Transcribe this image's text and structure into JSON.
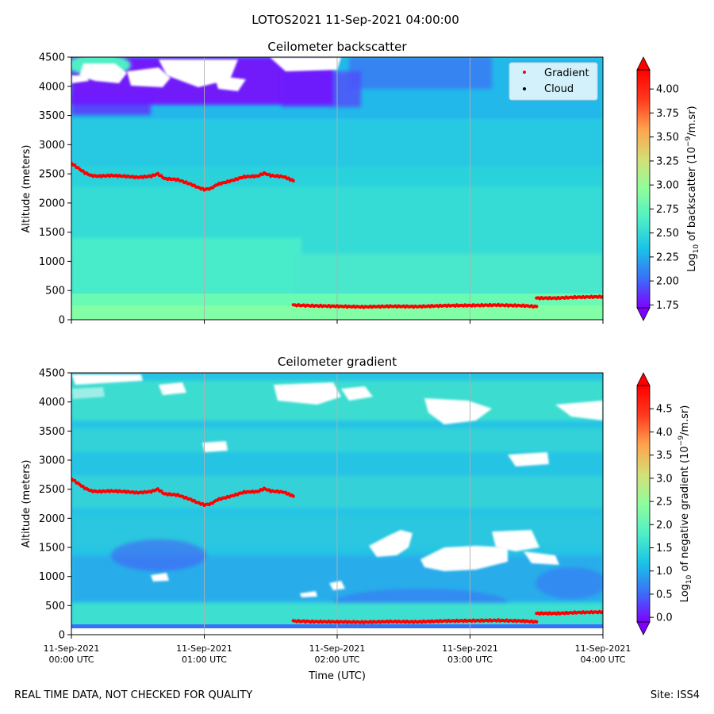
{
  "figure": {
    "suptitle": "LOTOS2021 11-Sep-2021 04:00:00",
    "disclaimer": "REAL TIME DATA, NOT CHECKED FOR QUALITY",
    "site": "Site: ISS4"
  },
  "colors": {
    "gradient_marker": "#ff0000",
    "cloud_marker": "#000000",
    "background_cloud_free": "#ffffff",
    "colormap": [
      "#7f00ff",
      "#3a70f8",
      "#19c4e6",
      "#4fefc6",
      "#8efe9c",
      "#d4de76",
      "#ffa34e",
      "#ff3a1e",
      "#ff0000"
    ]
  },
  "chart_data": [
    {
      "type": "heatmap",
      "title": "Ceilometer backscatter",
      "xlabel": "",
      "ylabel": "Altitude (meters)",
      "xlim": [
        0,
        4
      ],
      "ylim": [
        0,
        4500
      ],
      "yticks": [
        0,
        500,
        1000,
        1500,
        2000,
        2500,
        3000,
        3500,
        4000,
        4500
      ],
      "xtick_labels": [],
      "colorbar": {
        "label_prefix": "Log",
        "label_sub": "10",
        "label_mid": " of backscatter (10",
        "label_sup": "−9",
        "label_suffix": "/m.sr)",
        "range": [
          1.72,
          4.2
        ],
        "ticks": [
          "1.75",
          "2.00",
          "2.25",
          "2.50",
          "2.75",
          "3.00",
          "3.25",
          "3.50",
          "3.75",
          "4.00"
        ]
      },
      "legend": {
        "position": "top-right",
        "entries": [
          "Gradient",
          "Cloud"
        ]
      },
      "field": {
        "surface_layer": [
          {
            "altitude_m": 0,
            "value": 2.85
          },
          {
            "altitude_m": 400,
            "value": 2.7
          },
          {
            "altitude_m": 1000,
            "value": 2.63
          },
          {
            "altitude_m": 1800,
            "value": 2.6
          },
          {
            "altitude_m": 2500,
            "value": 2.5
          },
          {
            "altitude_m": 3200,
            "value": 2.4
          },
          {
            "altitude_m": 3800,
            "value": 2.2
          },
          {
            "altitude_m": 4500,
            "value": 1.9
          }
        ],
        "no_signal_regions_hours_alt": [
          [
            0.0,
            0.42,
            3960,
            4500
          ],
          [
            0.45,
            0.85,
            3900,
            4500
          ],
          [
            1.1,
            1.7,
            4250,
            4500
          ],
          [
            0.95,
            1.2,
            4350,
            4500
          ]
        ]
      },
      "gradient_series": [
        {
          "hours": [
            0.0,
            0.05,
            0.1,
            0.15,
            0.2,
            0.3,
            0.4,
            0.5,
            0.6,
            0.65,
            0.7,
            0.8,
            0.9,
            0.95,
            1.0,
            1.05,
            1.1,
            1.2,
            1.3,
            1.4,
            1.45,
            1.5,
            1.6,
            1.67
          ],
          "altitude_m": [
            2680,
            2600,
            2520,
            2470,
            2460,
            2470,
            2460,
            2440,
            2460,
            2500,
            2420,
            2400,
            2320,
            2270,
            2230,
            2250,
            2320,
            2380,
            2450,
            2460,
            2510,
            2470,
            2450,
            2380
          ]
        },
        {
          "hours": [
            1.67,
            1.8,
            2.0,
            2.2,
            2.4,
            2.6,
            2.8,
            3.0,
            3.2,
            3.4,
            3.5
          ],
          "altitude_m": [
            250,
            240,
            230,
            220,
            230,
            225,
            240,
            245,
            250,
            240,
            225
          ]
        },
        {
          "hours": [
            3.5,
            3.65,
            3.8,
            4.0
          ],
          "altitude_m": [
            370,
            370,
            385,
            395
          ]
        }
      ]
    },
    {
      "type": "heatmap",
      "title": "Ceilometer gradient",
      "xlabel": "Time (UTC)",
      "ylabel": "Altitude (meters)",
      "xlim": [
        0,
        4
      ],
      "ylim": [
        0,
        4500
      ],
      "yticks": [
        0,
        500,
        1000,
        1500,
        2000,
        2500,
        3000,
        3500,
        4000,
        4500
      ],
      "xticks": [
        {
          "hours": 0,
          "line1": "11-Sep-2021",
          "line2": "00:00 UTC"
        },
        {
          "hours": 1,
          "line1": "11-Sep-2021",
          "line2": "01:00 UTC"
        },
        {
          "hours": 2,
          "line1": "11-Sep-2021",
          "line2": "02:00 UTC"
        },
        {
          "hours": 3,
          "line1": "11-Sep-2021",
          "line2": "03:00 UTC"
        },
        {
          "hours": 4,
          "line1": "11-Sep-2021",
          "line2": "04:00 UTC"
        }
      ],
      "colorbar": {
        "label_prefix": "Log",
        "label_sub": "10",
        "label_mid": " of negative gradient (10",
        "label_sup": "−9",
        "label_suffix": "/m.sr)",
        "range": [
          -0.1,
          5.0
        ],
        "ticks": [
          "0.0",
          "0.5",
          "1.0",
          "1.5",
          "2.0",
          "2.5",
          "3.0",
          "3.5",
          "4.0",
          "4.5"
        ]
      },
      "field": {
        "background_value": 1.45,
        "no_signal_regions_hours_alt": [
          [
            0.0,
            0.2,
            4150,
            4350
          ],
          [
            0.45,
            0.65,
            4300,
            4500
          ],
          [
            0.6,
            0.85,
            3950,
            4200
          ],
          [
            1.5,
            2.1,
            3950,
            4250
          ],
          [
            2.35,
            2.95,
            3850,
            4150
          ],
          [
            2.5,
            3.1,
            3550,
            3800
          ],
          [
            3.55,
            3.8,
            3050,
            3250
          ],
          [
            2.25,
            2.55,
            1350,
            1700
          ],
          [
            2.65,
            3.35,
            950,
            1250
          ],
          [
            3.15,
            3.55,
            1200,
            1500
          ],
          [
            3.5,
            3.75,
            1000,
            1200
          ],
          [
            2.0,
            2.05,
            800,
            850
          ]
        ],
        "low_value_features_hours_alt": [
          [
            0.65,
            0.75,
            950,
            1100
          ],
          [
            1.9,
            2.05,
            750,
            900
          ],
          [
            1.6,
            1.9,
            700,
            800
          ],
          [
            3.8,
            4.0,
            780,
            900
          ]
        ]
      },
      "gradient_series": [
        {
          "hours": [
            0.0,
            0.05,
            0.1,
            0.15,
            0.2,
            0.3,
            0.4,
            0.5,
            0.6,
            0.65,
            0.7,
            0.8,
            0.9,
            0.95,
            1.0,
            1.05,
            1.1,
            1.2,
            1.3,
            1.4,
            1.45,
            1.5,
            1.6,
            1.67
          ],
          "altitude_m": [
            2680,
            2600,
            2520,
            2470,
            2460,
            2470,
            2460,
            2440,
            2460,
            2500,
            2420,
            2400,
            2320,
            2270,
            2230,
            2250,
            2320,
            2380,
            2450,
            2460,
            2510,
            2470,
            2450,
            2380
          ]
        },
        {
          "hours": [
            1.67,
            1.8,
            2.0,
            2.2,
            2.4,
            2.6,
            2.8,
            3.0,
            3.2,
            3.4,
            3.5
          ],
          "altitude_m": [
            235,
            225,
            220,
            215,
            225,
            220,
            235,
            240,
            245,
            235,
            220
          ]
        },
        {
          "hours": [
            3.5,
            3.65,
            3.8,
            4.0
          ],
          "altitude_m": [
            365,
            365,
            380,
            390
          ]
        }
      ]
    }
  ]
}
